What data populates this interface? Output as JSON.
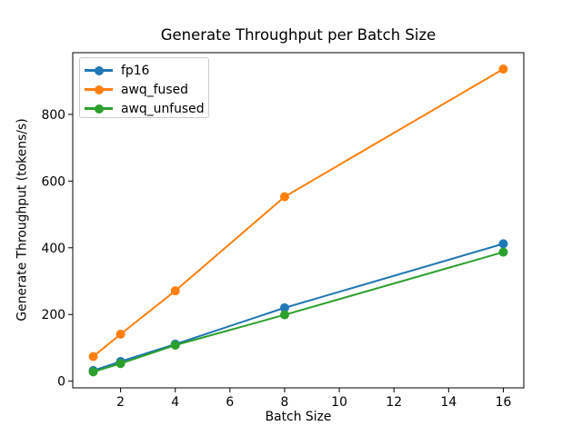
{
  "chart_data": {
    "type": "line",
    "title": "Generate Throughput per Batch Size",
    "xlabel": "Batch Size",
    "ylabel": "Generate Throughput (tokens/s)",
    "x": [
      1,
      2,
      4,
      8,
      16
    ],
    "series": [
      {
        "name": "fp16",
        "color": "#1f77b4",
        "values": [
          32,
          59,
          111,
          220,
          412
        ]
      },
      {
        "name": "awq_fused",
        "color": "#ff7f0e",
        "values": [
          74,
          141,
          271,
          553,
          936
        ]
      },
      {
        "name": "awq_unfused",
        "color": "#2ca02c",
        "values": [
          28,
          53,
          108,
          199,
          387
        ]
      }
    ],
    "xticks": [
      2,
      4,
      6,
      8,
      10,
      12,
      14,
      16
    ],
    "yticks": [
      0,
      200,
      400,
      600,
      800
    ],
    "xlim": [
      0.25,
      16.75
    ],
    "ylim": [
      -20,
      985
    ],
    "grid": false,
    "marker": "circle",
    "legend": {
      "position": "upper-left",
      "labels": [
        "fp16",
        "awq_fused",
        "awq_unfused"
      ]
    }
  }
}
